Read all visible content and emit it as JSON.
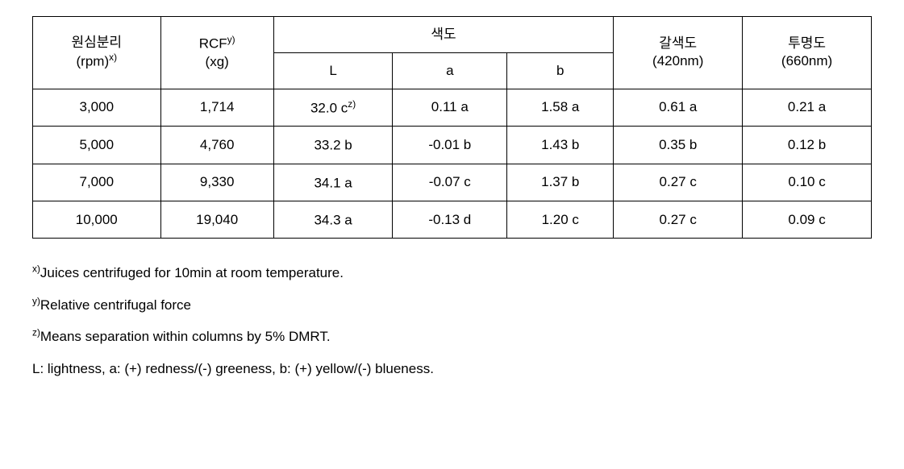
{
  "table": {
    "headers": {
      "col1_line1": "원심분리",
      "col1_line2": "(rpm)",
      "col1_sup": "x)",
      "col2_line1": "RCF",
      "col2_sup": "y)",
      "col2_line2": "(xg)",
      "col3_group": "색도",
      "col3_sub1": "L",
      "col3_sub2": "a",
      "col3_sub3": "b",
      "col4_line1": "갈색도",
      "col4_line2": "(420nm)",
      "col5_line1": "투명도",
      "col5_line2": "(660nm)"
    },
    "rows": [
      {
        "rpm": "3,000",
        "rcf": "1,714",
        "L_val": "32.0 c",
        "L_sup": "z)",
        "a": "0.11 a",
        "b": "1.58 a",
        "brown": "0.61 a",
        "clarity": "0.21 a"
      },
      {
        "rpm": "5,000",
        "rcf": "4,760",
        "L_val": "33.2 b",
        "L_sup": "",
        "a": "-0.01 b",
        "b": "1.43 b",
        "brown": "0.35 b",
        "clarity": "0.12 b"
      },
      {
        "rpm": "7,000",
        "rcf": "9,330",
        "L_val": "34.1 a",
        "L_sup": "",
        "a": "-0.07 c",
        "b": "1.37 b",
        "brown": "0.27 c",
        "clarity": "0.10 c"
      },
      {
        "rpm": "10,000",
        "rcf": "19,040",
        "L_val": "34.3 a",
        "L_sup": "",
        "a": "-0.13 d",
        "b": "1.20 c",
        "brown": "0.27 c",
        "clarity": "0.09 c"
      }
    ]
  },
  "notes": {
    "n1_sup": "x)",
    "n1_text": "Juices centrifuged for 10min at room temperature.",
    "n2_sup": "y)",
    "n2_text": "Relative centrifugal force",
    "n3_sup": "z)",
    "n3_text": "Means separation within columns by 5% DMRT.",
    "n4_text": "L: lightness, a: (+) redness/(-) greeness, b: (+) yellow/(-) blueness."
  }
}
